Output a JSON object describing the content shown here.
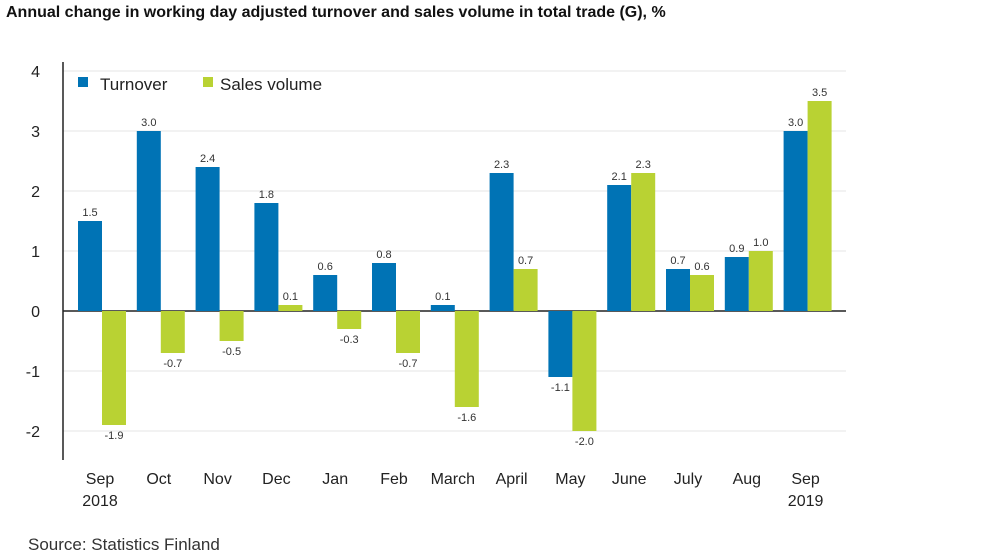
{
  "chart_data": {
    "type": "bar",
    "title": "Annual change in working day adjusted turnover and sales volume in total trade (G), %",
    "categories": [
      "Sep\n2018",
      "Oct",
      "Nov",
      "Dec",
      "Jan",
      "Feb",
      "March",
      "April",
      "May",
      "June",
      "July",
      "Aug",
      "Sep\n2019"
    ],
    "series": [
      {
        "name": "Turnover",
        "color": "#0073b5",
        "values": [
          1.5,
          3.0,
          2.4,
          1.8,
          0.6,
          0.8,
          0.1,
          2.3,
          -1.1,
          2.1,
          0.7,
          0.9,
          3.0
        ]
      },
      {
        "name": "Sales volume",
        "color": "#b9d233",
        "values": [
          -1.9,
          -0.7,
          -0.5,
          0.1,
          -0.3,
          -0.7,
          -1.6,
          0.7,
          -2.0,
          2.3,
          0.6,
          1.0,
          3.5
        ]
      }
    ],
    "ylim": [
      -2.5,
      4.2
    ],
    "yticks": [
      -2,
      -1,
      0,
      1,
      2,
      3,
      4
    ],
    "grid": true,
    "legend": "top-left",
    "source": "Source: Statistics Finland"
  }
}
